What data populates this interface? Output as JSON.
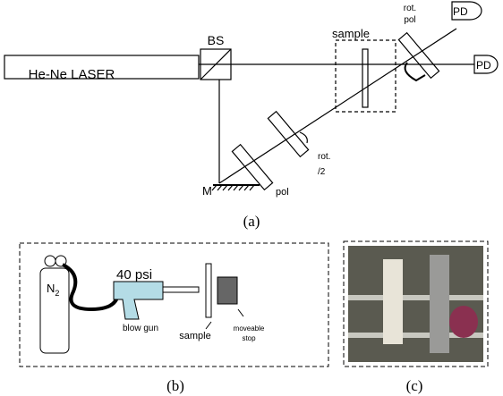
{
  "panel_a": {
    "laser": "He-Ne LASER",
    "beam_splitter": "BS",
    "sample": "sample",
    "rotating_polarizer": [
      "rot.",
      "pol"
    ],
    "photodetectors": [
      "PD",
      "PD"
    ],
    "mirror": "M",
    "polarizer": "pol",
    "rotating_waveplate": [
      "rot.",
      "/2"
    ],
    "caption": "(a)"
  },
  "panel_b": {
    "nitrogen": "N",
    "nitrogen_subscript": "2",
    "pressure": "40 psi",
    "blow_gun": "blow gun",
    "sample": "sample",
    "stop": [
      "moveable",
      "stop"
    ],
    "caption": "(b)"
  },
  "panel_c": {
    "caption": "(c)"
  }
}
